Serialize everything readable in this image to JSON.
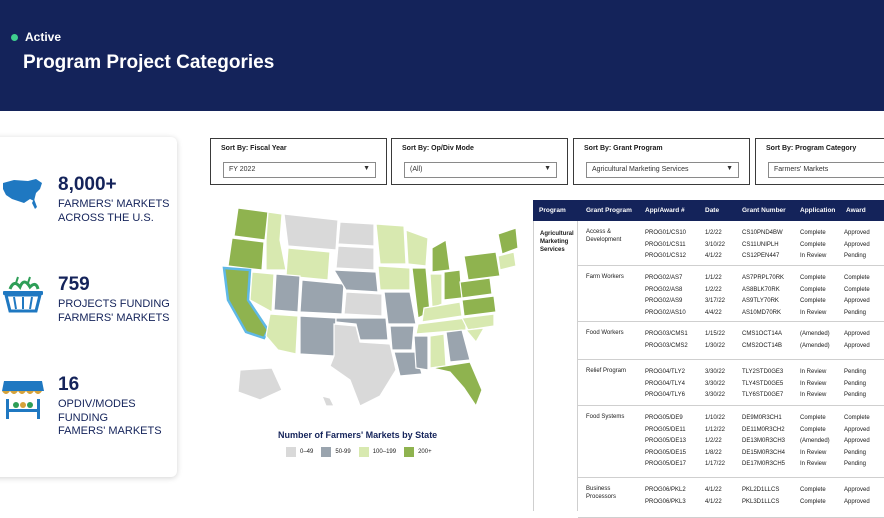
{
  "header": {
    "status": "Active",
    "title": "Program Project Categories"
  },
  "colors": {
    "header_bg": "#14235a",
    "status_dot": "#3fcf8e",
    "tier_0_49": "#d9d9d9",
    "tier_50_99": "#9aa4ae",
    "tier_100_199": "#d8e9b0",
    "tier_200_plus": "#8fb34f",
    "highlight": "#5fb8e6"
  },
  "stats": [
    {
      "icon": "us-map-icon",
      "number": "8,000+",
      "text_line1": "FARMERS' MARKETS",
      "text_line2": "ACROSS THE U.S.",
      "text_line3": ""
    },
    {
      "icon": "produce-basket-icon",
      "number": "759",
      "text_line1": "PROJECTS FUNDING",
      "text_line2": "FARMERS' MARKETS",
      "text_line3": ""
    },
    {
      "icon": "market-stall-icon",
      "number": "16",
      "text_line1": "OPDIV/MODES",
      "text_line2": "FUNDING",
      "text_line3": "FAMERS' MARKETS"
    }
  ],
  "filters": [
    {
      "label": "Sort By: Fiscal Year",
      "value": "FY 2022"
    },
    {
      "label": "Sort By: Op/Div Mode",
      "value": "(All)"
    },
    {
      "label": "Sort By: Grant Program",
      "value": "Agricultural Marketing Services"
    },
    {
      "label": "Sort By: Program Category",
      "value": "Farmers' Markets"
    }
  ],
  "map": {
    "legend_title": "Number of Farmers' Markets by State",
    "legend": [
      {
        "label": "0–49",
        "color": "#d9d9d9"
      },
      {
        "label": "50-99",
        "color": "#9aa4ae"
      },
      {
        "label": "100–199",
        "color": "#d8e9b0"
      },
      {
        "label": "200+",
        "color": "#8fb34f"
      }
    ]
  },
  "table": {
    "headers": [
      "Program",
      "Grant Program",
      "App/Award #",
      "Date",
      "Grant Number",
      "Application",
      "Award"
    ],
    "program": "Agricultural Marketing Services",
    "groups": [
      {
        "name": "Access & Development",
        "rows": [
          [
            "PROG01/CS10",
            "1/2/22",
            "CS10PND4BW",
            "Complete",
            "Approved"
          ],
          [
            "PROG01/CS11",
            "3/10/22",
            "CS11UNIPLH",
            "Complete",
            "Approved"
          ],
          [
            "PROG01/CS12",
            "4/1/22",
            "CS12PEN447",
            "In Review",
            "Pending"
          ]
        ]
      },
      {
        "name": "Farm Workers",
        "rows": [
          [
            "PROG02/AS7",
            "1/1/22",
            "AS7PRPL70RK",
            "Complete",
            "Complete"
          ],
          [
            "PROG02/AS8",
            "1/2/22",
            "AS8BLK70RK",
            "Complete",
            "Complete"
          ],
          [
            "PROG02/AS9",
            "3/17/22",
            "AS9TLY70RK",
            "Complete",
            "Approved"
          ],
          [
            "PROG02/AS10",
            "4/4/22",
            "AS10MD70RK",
            "In Review",
            "Pending"
          ]
        ]
      },
      {
        "name": "Food Workers",
        "rows": [
          [
            "PROG03/CMS1",
            "1/15/22",
            "CMS1OCT14A",
            "(Amended)",
            "Approved"
          ],
          [
            "PROG03/CMS2",
            "1/30/22",
            "CMS2OCT14B",
            "(Amended)",
            "Approved"
          ]
        ]
      },
      {
        "name": "Relief Program",
        "rows": [
          [
            "PROG04/TLY2",
            "3/30/22",
            "TLY2STD0GE3",
            "In Review",
            "Pending"
          ],
          [
            "PROG04/TLY4",
            "3/30/22",
            "TLY4STD0GE5",
            "In Review",
            "Pending"
          ],
          [
            "PROG04/TLY6",
            "3/30/22",
            "TLY6STD0GE7",
            "In Review",
            "Pending"
          ]
        ]
      },
      {
        "name": "Food Systems",
        "rows": [
          [
            "PROG05/DE9",
            "1/10/22",
            "DE9M0R3CH1",
            "Complete",
            "Complete"
          ],
          [
            "PROG05/DE11",
            "1/12/22",
            "DE11M0R3CH2",
            "Complete",
            "Approved"
          ],
          [
            "PROG05/DE13",
            "1/2/22",
            "DE13M0R3CH3",
            "(Amended)",
            "Approved"
          ],
          [
            "PROG05/DE15",
            "1/8/22",
            "DE15M0R3CH4",
            "In Review",
            "Pending"
          ],
          [
            "PROG05/DE17",
            "1/17/22",
            "DE17M0R3CH5",
            "In Review",
            "Pending"
          ]
        ]
      },
      {
        "name": "Business Processors",
        "rows": [
          [
            "PROG06/PKL2",
            "4/1/22",
            "PKL2D1LLCS",
            "Complete",
            "Approved"
          ],
          [
            "PROG06/PKL3",
            "4/1/22",
            "PKL3D1LLCS",
            "Complete",
            "Approved"
          ]
        ]
      }
    ]
  }
}
